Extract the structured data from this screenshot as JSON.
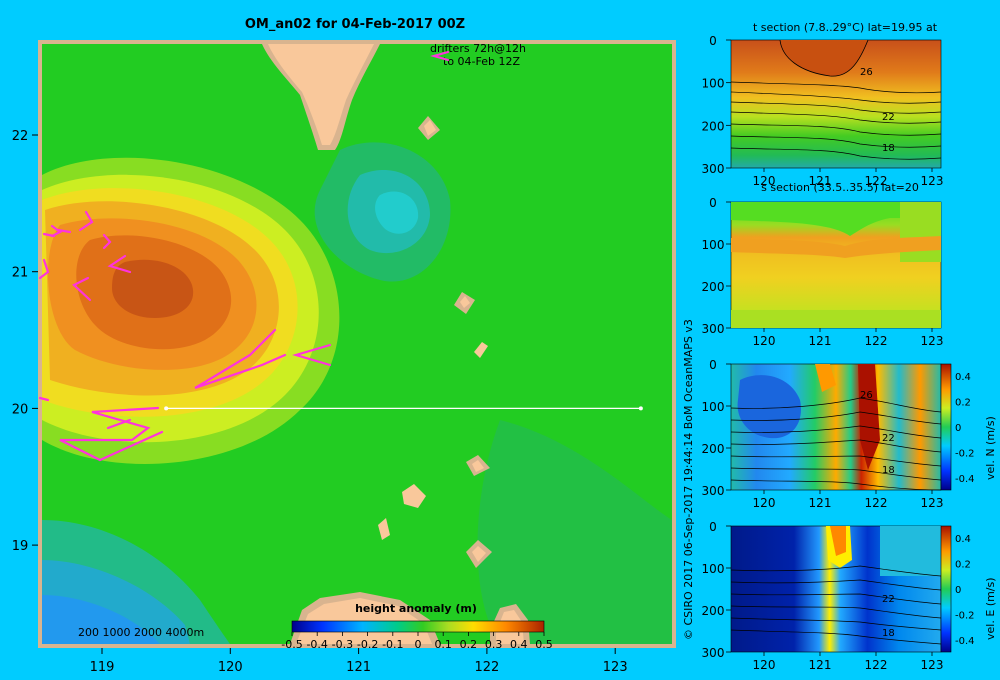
{
  "map": {
    "title": "OM_an02 for 04-Feb-2017 00Z",
    "drifters_line1": "drifters 72h@12h",
    "drifters_line2": "to 04-Feb 12Z",
    "depth_legend": "200  1000  2000  4000m",
    "colorbar_title": "height anomaly (m)",
    "colorbar_ticks": [
      "-0.5",
      "-0.4",
      "-0.3",
      "-0.2",
      "-0.1",
      "0",
      "0.1",
      "0.2",
      "0.3",
      "0.4",
      "0.5"
    ],
    "lon_ticks": [
      "119",
      "120",
      "121",
      "122",
      "123"
    ],
    "lat_ticks": [
      "22",
      "21",
      "20",
      "19"
    ],
    "section_lat": 20,
    "section_lon": [
      119.5,
      123.2
    ]
  },
  "credit": "© CSIRO 2017   06-Sep-2017 19:44:14 BoM OceanMAPS v3",
  "panels": [
    {
      "title": "t section (7.8..29°C) lat=19.95 at",
      "depth_ticks": [
        "0",
        "100",
        "200",
        "300"
      ],
      "lon_ticks": [
        "120",
        "121",
        "122",
        "123"
      ],
      "contour_labels": [
        "26",
        "22",
        "18"
      ]
    },
    {
      "title": "s section (33.5..35.5) lat=20",
      "depth_ticks": [
        "0",
        "100",
        "200",
        "300"
      ],
      "lon_ticks": [
        "120",
        "121",
        "122",
        "123"
      ],
      "contour_labels": []
    },
    {
      "title": "",
      "depth_ticks": [
        "0",
        "100",
        "200",
        "300"
      ],
      "lon_ticks": [
        "120",
        "121",
        "122",
        "123"
      ],
      "contour_labels": [
        "26",
        "22",
        "18"
      ],
      "colorbar_label": "vel. N (m/s)",
      "colorbar_ticks": [
        "0.4",
        "0.2",
        "0",
        "-0.2",
        "-0.4"
      ]
    },
    {
      "title": "",
      "depth_ticks": [
        "0",
        "100",
        "200",
        "300"
      ],
      "lon_ticks": [
        "120",
        "121",
        "122",
        "123"
      ],
      "contour_labels": [
        "22",
        "18"
      ],
      "colorbar_label": "vel. E (m/s)",
      "colorbar_ticks": [
        "0.4",
        "0.2",
        "0",
        "-0.2",
        "-0.4"
      ]
    }
  ],
  "colors": {
    "background": "#00ccff",
    "land": "#f9c89b",
    "drifter": "#ff33dd"
  }
}
